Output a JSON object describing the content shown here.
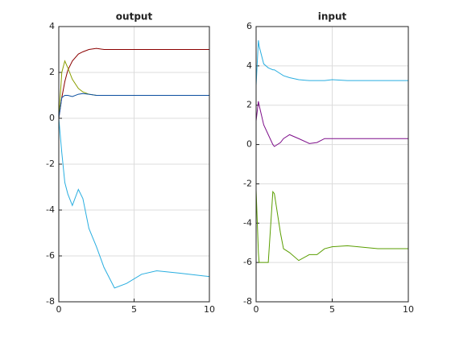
{
  "chart_data": [
    {
      "type": "line",
      "title": "output",
      "x": [
        0,
        0.2,
        0.4,
        0.6,
        0.9,
        1.3,
        1.6,
        2,
        2.5,
        3,
        3.7,
        4.5,
        5.5,
        6.5,
        8,
        10
      ],
      "series": [
        {
          "color": "#8b0000",
          "values": [
            0,
            0.9,
            1.6,
            2.1,
            2.5,
            2.8,
            2.9,
            3.0,
            3.05,
            3.0,
            3,
            3,
            3,
            3,
            3,
            3
          ]
        },
        {
          "color": "#8a9e00",
          "values": [
            0,
            2.0,
            2.5,
            2.2,
            1.7,
            1.3,
            1.15,
            1.05,
            1.0,
            1,
            1,
            1,
            1,
            1,
            1,
            1
          ]
        },
        {
          "color": "#0b4fa0",
          "values": [
            0,
            0.9,
            1.0,
            1.0,
            0.95,
            1.05,
            1.08,
            1.05,
            1.0,
            1,
            1,
            1,
            1,
            1,
            1,
            1
          ]
        },
        {
          "color": "#29aee0",
          "values": [
            0,
            -1.5,
            -2.8,
            -3.3,
            -3.8,
            -3.1,
            -3.5,
            -4.8,
            -5.6,
            -6.5,
            -7.4,
            -7.2,
            -6.8,
            -6.65,
            -6.75,
            -6.9
          ]
        }
      ],
      "xlim": [
        0,
        10
      ],
      "xticks": [
        0,
        5,
        10
      ],
      "ylim": [
        -8,
        4
      ],
      "yticks": [
        -8,
        -6,
        -4,
        -2,
        0,
        2,
        4
      ],
      "grid": true
    },
    {
      "type": "line",
      "title": "input",
      "x": [
        0,
        0.15,
        0.2,
        0.5,
        0.8,
        1.1,
        1.2,
        1.6,
        1.8,
        2.2,
        2.8,
        3.5,
        4,
        4.5,
        5,
        6,
        8,
        10
      ],
      "series": [
        {
          "color": "#29aee0",
          "values": [
            3.0,
            5.3,
            5.0,
            4.1,
            3.9,
            3.8,
            3.8,
            3.6,
            3.5,
            3.4,
            3.3,
            3.25,
            3.25,
            3.25,
            3.3,
            3.25,
            3.25,
            3.25
          ]
        },
        {
          "color": "#7e0f8a",
          "values": [
            1.2,
            2.2,
            2.0,
            1.0,
            0.5,
            0.0,
            -0.1,
            0.1,
            0.3,
            0.5,
            0.3,
            0.05,
            0.1,
            0.3,
            0.3,
            0.3,
            0.3,
            0.3
          ]
        },
        {
          "color": "#5a9e00",
          "values": [
            -2.3,
            -5.5,
            -6.0,
            -6.0,
            -6.0,
            -2.4,
            -2.5,
            -4.5,
            -5.3,
            -5.5,
            -5.9,
            -5.6,
            -5.6,
            -5.3,
            -5.2,
            -5.15,
            -5.3,
            -5.3
          ]
        }
      ],
      "xlim": [
        0,
        10
      ],
      "xticks": [
        0,
        5,
        10
      ],
      "ylim": [
        -8,
        6
      ],
      "yticks": [
        -8,
        -6,
        -4,
        -2,
        0,
        2,
        4,
        6
      ],
      "grid": true
    }
  ]
}
